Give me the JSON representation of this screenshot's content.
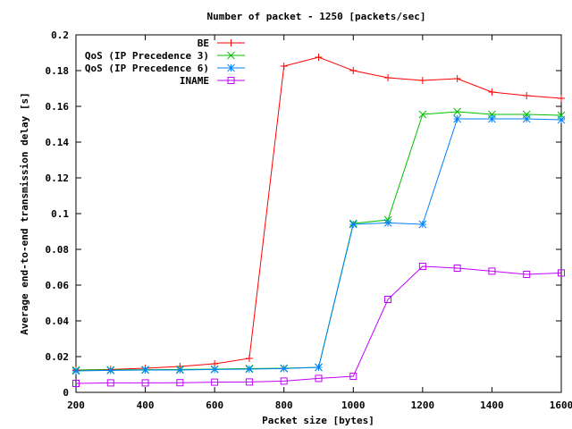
{
  "chart_data": {
    "type": "line",
    "title": "Number of packet - 1250 [packets/sec]",
    "xlabel": "Packet size [bytes]",
    "ylabel": "Average end-to-end transmission delay [s]",
    "xlim": [
      200,
      1600
    ],
    "ylim": [
      0,
      0.2
    ],
    "xticks": [
      200,
      400,
      600,
      800,
      1000,
      1200,
      1400,
      1600
    ],
    "xtick_labels": [
      "200",
      "400",
      "600",
      "800",
      "1000",
      "1200",
      "1400",
      "1600"
    ],
    "yticks": [
      0,
      0.02,
      0.04,
      0.06,
      0.08,
      0.1,
      0.12,
      0.14,
      0.16,
      0.18,
      0.2
    ],
    "ytick_labels": [
      "0",
      "0.02",
      "0.04",
      "0.06",
      "0.08",
      "0.1",
      "0.12",
      "0.14",
      "0.16",
      "0.18",
      "0.2"
    ],
    "grid": false,
    "legend_position": "top-left",
    "x": [
      200,
      300,
      400,
      500,
      600,
      700,
      800,
      900,
      1000,
      1100,
      1200,
      1300,
      1400,
      1500,
      1600
    ],
    "series": [
      {
        "name": "BE",
        "color": "#ff0000",
        "marker": "plus",
        "values": [
          0.0125,
          0.0128,
          0.0135,
          0.0145,
          0.016,
          0.019,
          0.1825,
          0.1875,
          0.18,
          0.176,
          0.1745,
          0.1755,
          0.168,
          0.166,
          0.1645
        ]
      },
      {
        "name": "QoS (IP Precedence 3)",
        "color": "#00c000",
        "marker": "cross",
        "values": [
          0.0125,
          0.0126,
          0.0127,
          0.0128,
          0.013,
          0.0133,
          0.0135,
          0.014,
          0.0945,
          0.0965,
          0.1555,
          0.157,
          0.1555,
          0.1555,
          0.155
        ]
      },
      {
        "name": "QoS (IP Precedence 6)",
        "color": "#0080ff",
        "marker": "star",
        "values": [
          0.012,
          0.0123,
          0.0125,
          0.0125,
          0.0128,
          0.013,
          0.0133,
          0.014,
          0.094,
          0.0948,
          0.094,
          0.153,
          0.153,
          0.153,
          0.1525
        ]
      },
      {
        "name": "INAME",
        "color": "#c000ff",
        "marker": "square",
        "values": [
          0.005,
          0.0053,
          0.0053,
          0.0054,
          0.0057,
          0.0058,
          0.0063,
          0.0078,
          0.009,
          0.052,
          0.0705,
          0.0695,
          0.0678,
          0.066,
          0.0668
        ]
      }
    ]
  }
}
